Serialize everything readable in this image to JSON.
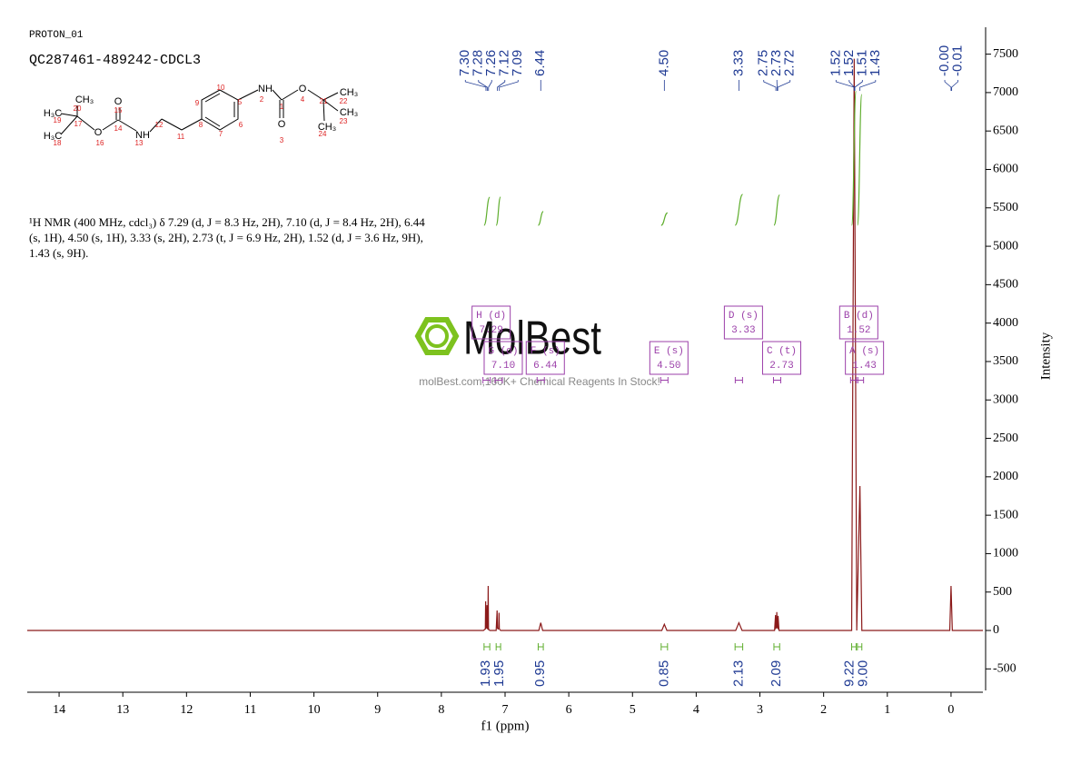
{
  "header": {
    "experiment": "PROTON_01",
    "sample": "QC287461-489242-CDCL3"
  },
  "structure": {
    "atoms": [
      "CH₃",
      "H₃C",
      "H₃C",
      "O",
      "O",
      "NH",
      "NH",
      "O",
      "O",
      "CH₃",
      "CH₃",
      "CH₃"
    ],
    "numbers": [
      "20",
      "19",
      "17",
      "18",
      "16",
      "14",
      "15",
      "13",
      "12",
      "11",
      "8",
      "9",
      "10",
      "7",
      "6",
      "5",
      "2",
      "1",
      "3",
      "4",
      "21",
      "22",
      "23",
      "24"
    ]
  },
  "description": "¹H NMR (400 MHz, cdcl₃) δ 7.29 (d, J = 8.3 Hz, 2H), 7.10 (d, J = 8.4 Hz, 2H), 6.44 (s, 1H), 4.50 (s, 1H), 3.33 (s, 2H), 2.73 (t, J = 6.9 Hz, 2H), 1.52 (d, J = 3.6 Hz, 9H), 1.43 (s, 9H).",
  "watermark": {
    "brand": "MolBest",
    "tagline": "molBest.com,160K+ Chemical Reagents In Stock!"
  },
  "chart_data": {
    "type": "line",
    "x_label": "f1 (ppm)",
    "y_label": "Intensity",
    "xlim": [
      14.5,
      -0.5
    ],
    "ylim": [
      -780,
      7850
    ],
    "xticks": [
      14,
      13,
      12,
      11,
      10,
      9,
      8,
      7,
      6,
      5,
      4,
      3,
      2,
      1,
      0
    ],
    "yticks": [
      -500,
      0,
      500,
      1000,
      1500,
      2000,
      2500,
      3000,
      3500,
      4000,
      4500,
      5000,
      5500,
      6000,
      6500,
      7000,
      7500
    ],
    "color": "#8b1a1a",
    "x": [
      14.5,
      7.34,
      7.31,
      7.305,
      7.3,
      7.29,
      7.285,
      7.28,
      7.27,
      7.265,
      7.26,
      7.24,
      7.14,
      7.125,
      7.12,
      7.11,
      7.1,
      7.095,
      7.09,
      7.07,
      6.47,
      6.44,
      6.41,
      4.54,
      4.5,
      4.46,
      3.38,
      3.33,
      3.28,
      2.77,
      2.755,
      2.75,
      2.74,
      2.735,
      2.73,
      2.72,
      2.715,
      2.7,
      1.56,
      1.52,
      1.48,
      1.43,
      1.4,
      0.02,
      0,
      -0.02,
      -0.5
    ],
    "values": [
      0,
      0,
      20,
      380,
      30,
      40,
      330,
      30,
      20,
      580,
      20,
      0,
      0,
      260,
      30,
      20,
      30,
      230,
      20,
      0,
      0,
      100,
      0,
      0,
      80,
      0,
      0,
      100,
      0,
      0,
      200,
      30,
      40,
      240,
      40,
      30,
      190,
      0,
      0,
      7440,
      0,
      1880,
      0,
      0,
      580,
      0,
      0
    ],
    "peak_labels": [
      {
        "value": 7.3,
        "label": "7.30"
      },
      {
        "value": 7.28,
        "label": "7.28"
      },
      {
        "value": 7.26,
        "label": "7.26"
      },
      {
        "value": 7.12,
        "label": "7.12"
      },
      {
        "value": 7.09,
        "label": "7.09"
      },
      {
        "value": 6.44,
        "label": "6.44"
      },
      {
        "value": 4.5,
        "label": "4.50"
      },
      {
        "value": 3.33,
        "label": "3.33"
      },
      {
        "value": 2.75,
        "label": "2.75"
      },
      {
        "value": 2.73,
        "label": "2.73"
      },
      {
        "value": 2.72,
        "label": "2.72"
      },
      {
        "value": 1.52,
        "label": "1.52"
      },
      {
        "value": 1.52,
        "label": "1.52"
      },
      {
        "value": 1.51,
        "label": "1.51"
      },
      {
        "value": 1.43,
        "label": "1.43"
      },
      {
        "value": 0.0,
        "label": "-0.00"
      },
      {
        "value": -0.01,
        "label": "-0.01"
      }
    ],
    "integrals": [
      {
        "range": [
          7.33,
          7.24
        ],
        "value": 1.93,
        "label": "1.93"
      },
      {
        "range": [
          7.14,
          7.07
        ],
        "value": 1.95,
        "label": "1.95"
      },
      {
        "range": [
          6.48,
          6.4
        ],
        "value": 0.95,
        "label": "0.95"
      },
      {
        "range": [
          4.55,
          4.45
        ],
        "value": 0.85,
        "label": "0.85"
      },
      {
        "range": [
          3.39,
          3.27
        ],
        "value": 2.13,
        "label": "2.13"
      },
      {
        "range": [
          2.78,
          2.69
        ],
        "value": 2.09,
        "label": "2.09"
      },
      {
        "range": [
          1.56,
          1.49
        ],
        "value": 9.22,
        "label": "9.22"
      },
      {
        "range": [
          1.47,
          1.4
        ],
        "value": 9.0,
        "label": "9.00"
      }
    ],
    "multiplets": [
      {
        "label": "H (d)",
        "shift": 7.29,
        "shift_label": "7.29"
      },
      {
        "label": "G (d)",
        "shift": 7.1,
        "shift_label": "7.10"
      },
      {
        "label": "F (s)",
        "shift": 6.44,
        "shift_label": "6.44"
      },
      {
        "label": "E (s)",
        "shift": 4.5,
        "shift_label": "4.50"
      },
      {
        "label": "D (s)",
        "shift": 3.33,
        "shift_label": "3.33"
      },
      {
        "label": "C (t)",
        "shift": 2.73,
        "shift_label": "2.73"
      },
      {
        "label": "B (d)",
        "shift": 1.52,
        "shift_label": "1.52"
      },
      {
        "label": "A (s)",
        "shift": 1.43,
        "shift_label": "1.43"
      }
    ]
  }
}
